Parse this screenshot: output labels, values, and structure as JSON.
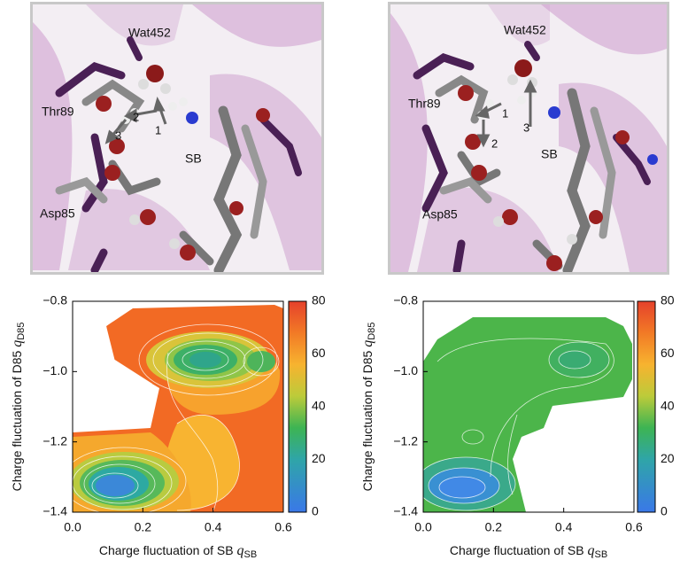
{
  "panels": [
    {
      "labels": {
        "water": "Wat452",
        "thr": "Thr89",
        "sb": "SB",
        "asp": "Asp85",
        "arrow1": "1",
        "arrow2": "2",
        "arrow3": "3"
      }
    },
    {
      "labels": {
        "water": "Wat452",
        "thr": "Thr89",
        "sb": "SB",
        "asp": "Asp85",
        "arrow1": "1",
        "arrow2": "2",
        "arrow3": "3"
      }
    }
  ],
  "chart_data": [
    {
      "type": "heatmap",
      "xlabel": "Charge fluctuation of SB",
      "xlabel_symbol": "q",
      "xlabel_sub": "SB",
      "ylabel": "Charge fluctuation of D85",
      "ylabel_symbol": "q",
      "ylabel_sub": "D85",
      "xlim": [
        0.0,
        0.6
      ],
      "ylim": [
        -1.4,
        -0.8
      ],
      "xticks": [
        "0.0",
        "0.2",
        "0.4",
        "0.6"
      ],
      "yticks": [
        "-1.4",
        "-1.2",
        "-1.0",
        "-0.8"
      ],
      "colorbar": {
        "range": [
          0,
          80
        ],
        "ticks": [
          "0",
          "20",
          "40",
          "60",
          "80"
        ]
      },
      "minima": [
        {
          "x": 0.12,
          "y": -1.31,
          "value": 8
        },
        {
          "x": 0.37,
          "y": -0.965,
          "value": 25
        },
        {
          "x": 0.55,
          "y": -0.97,
          "value": 45
        }
      ]
    },
    {
      "type": "heatmap",
      "xlabel": "Charge fluctuation of SB",
      "xlabel_symbol": "q",
      "xlabel_sub": "SB",
      "ylabel": "Charge fluctuation of D85",
      "ylabel_symbol": "q",
      "ylabel_sub": "D85",
      "xlim": [
        0.0,
        0.6
      ],
      "ylim": [
        -1.4,
        -0.8
      ],
      "xticks": [
        "0.0",
        "0.2",
        "0.4",
        "0.6"
      ],
      "yticks": [
        "-1.4",
        "-1.2",
        "-1.0",
        "-0.8"
      ],
      "colorbar": {
        "range": [
          0,
          80
        ],
        "ticks": [
          "0",
          "20",
          "40",
          "60",
          "80"
        ]
      },
      "minima": [
        {
          "x": 0.12,
          "y": -1.31,
          "value": 8
        },
        {
          "x": 0.41,
          "y": -0.96,
          "value": 22
        }
      ]
    }
  ]
}
